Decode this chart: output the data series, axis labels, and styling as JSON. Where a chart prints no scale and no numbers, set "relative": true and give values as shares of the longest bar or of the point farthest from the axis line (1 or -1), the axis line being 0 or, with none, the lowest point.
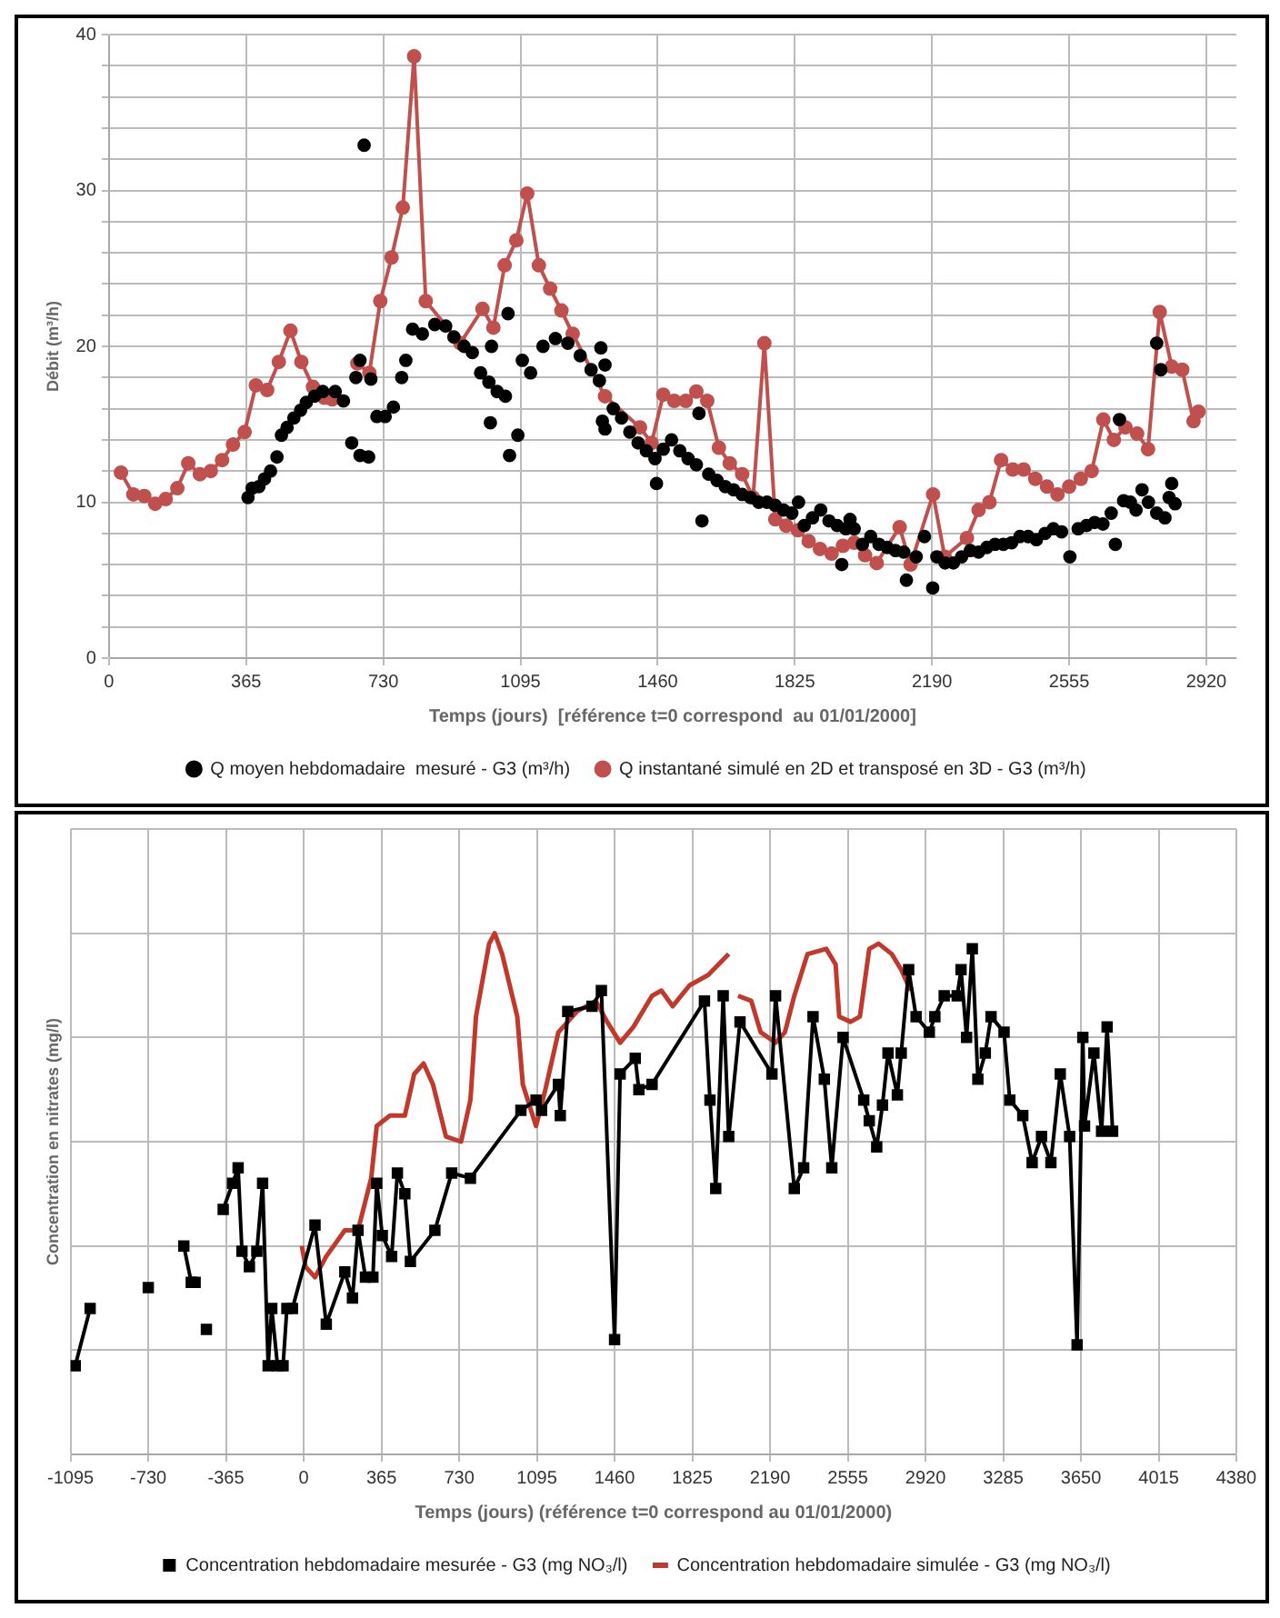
{
  "chart_data": [
    {
      "type": "line",
      "xlabel": "Temps (jours)  [référence t=0 correspond  au 01/01/2000]",
      "ylabel": "Débit (m³/h)",
      "xlim": [
        0,
        3000
      ],
      "xticks": [
        0,
        365,
        730,
        1095,
        1460,
        1825,
        2190,
        2555,
        2920
      ],
      "ylim": [
        0,
        40
      ],
      "yticks": [
        0,
        {
          "value": 2,
          "label": null
        },
        {
          "value": 4,
          "label": null
        },
        {
          "value": 6,
          "label": null
        },
        {
          "value": 8,
          "label": null
        },
        10,
        {
          "value": 12,
          "label": null
        },
        {
          "value": 14,
          "label": null
        },
        {
          "value": 16,
          "label": null
        },
        {
          "value": 18,
          "label": null
        },
        20,
        {
          "value": 22,
          "label": null
        },
        {
          "value": 24,
          "label": null
        },
        {
          "value": 26,
          "label": null
        },
        {
          "value": 28,
          "label": null
        },
        30,
        {
          "value": 32,
          "label": null
        },
        {
          "value": 34,
          "label": null
        },
        {
          "value": 36,
          "label": null
        },
        {
          "value": 38,
          "label": null
        },
        40
      ],
      "grid": true,
      "legend": "bottom",
      "series": [
        {
          "name": "Q moyen hebdomadaire  mesuré - G3 (m³/h)",
          "type": "scatter",
          "marker": "circle",
          "color": "#000000",
          "x": [
            370,
            381,
            399,
            414,
            430,
            447,
            459,
            474,
            492,
            510,
            525,
            547,
            569,
            602,
            624,
            646,
            668,
            691,
            679,
            668,
            657,
            697,
            713,
            735,
            757,
            779,
            790,
            808,
            834,
            867,
            896,
            918,
            945,
            967,
            989,
            1011,
            1033,
            1055,
            1015,
            1066,
            1088,
            1018,
            1062,
            1100,
            1122,
            1155,
            1188,
            1221,
            1254,
            1283,
            1309,
            1320,
            1305,
            1313,
            1320,
            1342,
            1364,
            1386,
            1408,
            1430,
            1453,
            1457,
            1475,
            1497,
            1519,
            1541,
            1563,
            1570,
            1578,
            1596,
            1618,
            1640,
            1662,
            1685,
            1707,
            1729,
            1751,
            1773,
            1795,
            1817,
            1835,
            1850,
            1872,
            1894,
            1916,
            1938,
            1961,
            1972,
            1983,
            1950,
            2005,
            2027,
            2049,
            2071,
            2093,
            2115,
            2122,
            2148,
            2170,
            2192,
            2203,
            2225,
            2247,
            2269,
            2292,
            2314,
            2336,
            2358,
            2380,
            2402,
            2424,
            2446,
            2468,
            2491,
            2513,
            2535,
            2557,
            2579,
            2601,
            2623,
            2645,
            2667,
            2678,
            2689,
            2700,
            2718,
            2733,
            2749,
            2766,
            2788,
            2810,
            2821,
            2828,
            2837,
            2788,
            2799
          ],
          "values": [
            10.3,
            10.9,
            11.0,
            11.5,
            12.0,
            12.9,
            14.3,
            14.8,
            15.4,
            15.9,
            16.4,
            16.8,
            17.1,
            17.1,
            16.5,
            13.8,
            13.0,
            12.9,
            32.9,
            19.1,
            18.0,
            17.9,
            15.5,
            15.5,
            16.1,
            18.0,
            19.1,
            21.1,
            20.8,
            21.4,
            21.3,
            20.6,
            20.0,
            19.6,
            18.3,
            17.7,
            17.1,
            16.8,
            15.1,
            13.0,
            14.3,
            20.0,
            22.1,
            19.1,
            18.3,
            20.0,
            20.5,
            20.2,
            19.4,
            18.5,
            19.9,
            18.8,
            17.8,
            15.2,
            14.7,
            16.0,
            15.4,
            14.5,
            13.8,
            13.3,
            12.8,
            11.2,
            13.4,
            14.0,
            13.3,
            12.8,
            12.4,
            15.7,
            8.8,
            11.8,
            11.4,
            11.0,
            10.8,
            10.5,
            10.3,
            10.0,
            10.0,
            9.8,
            9.5,
            9.3,
            10.0,
            8.5,
            9.0,
            9.5,
            8.8,
            8.5,
            8.3,
            8.9,
            8.3,
            6.0,
            7.3,
            7.8,
            7.3,
            7.1,
            6.9,
            6.8,
            5.0,
            6.5,
            7.8,
            4.5,
            6.5,
            6.1,
            6.1,
            6.5,
            6.9,
            6.8,
            7.1,
            7.3,
            7.3,
            7.4,
            7.8,
            7.8,
            7.6,
            8.0,
            8.3,
            8.1,
            6.5,
            8.3,
            8.5,
            8.7,
            8.6,
            9.3,
            7.3,
            15.3,
            10.1,
            10.0,
            9.5,
            10.8,
            10.0,
            9.3,
            9.0,
            10.3,
            11.2,
            9.9,
            20.2,
            18.5
          ]
        },
        {
          "name": "Q instantané simulé en 2D et transposé en 3D - G3 (m³/h)",
          "type": "line",
          "marker": "circle",
          "color": "#c0504d",
          "x": [
            32,
            65,
            94,
            123,
            151,
            182,
            211,
            242,
            271,
            301,
            330,
            361,
            391,
            421,
            452,
            483,
            512,
            543,
            573,
            594,
            625,
            661,
            693,
            722,
            752,
            782,
            812,
            843,
            935,
            994,
            1023,
            1053,
            1084,
            1113,
            1144,
            1174,
            1204,
            1234,
            1320,
            1413,
            1444,
            1475,
            1504,
            1535,
            1563,
            1592,
            1623,
            1652,
            1685,
            1714,
            1744,
            1773,
            1802,
            1833,
            1862,
            1892,
            1923,
            1953,
            1983,
            2012,
            2043,
            2104,
            2133,
            2193,
            2224,
            2283,
            2314,
            2343,
            2374,
            2405,
            2434,
            2465,
            2496,
            2524,
            2555,
            2586,
            2615,
            2646,
            2674,
            2705,
            2736,
            2765,
            2796,
            2828,
            2856,
            2886,
            2899
          ],
          "values": [
            11.9,
            10.5,
            10.4,
            9.9,
            10.2,
            10.9,
            12.5,
            11.8,
            12.0,
            12.7,
            13.7,
            14.5,
            17.5,
            17.2,
            19.0,
            21.0,
            19.0,
            17.4,
            16.7,
            16.6,
            null,
            18.9,
            18.3,
            22.9,
            25.7,
            28.9,
            38.6,
            22.9,
            20.2,
            22.4,
            21.2,
            25.2,
            26.8,
            29.8,
            25.2,
            23.7,
            22.3,
            20.8,
            16.8,
            14.8,
            13.8,
            16.9,
            16.5,
            16.5,
            17.1,
            16.5,
            13.5,
            12.5,
            11.8,
            10.3,
            20.2,
            8.9,
            8.5,
            8.2,
            7.5,
            7.0,
            6.7,
            7.2,
            7.4,
            6.6,
            6.1,
            8.4,
            6.0,
            10.5,
            6.5,
            7.7,
            9.5,
            10.0,
            12.7,
            12.1,
            12.1,
            11.5,
            11.0,
            10.5,
            11.0,
            11.5,
            12.0,
            15.3,
            14.0,
            14.8,
            14.4,
            13.4,
            22.2,
            18.7,
            18.5,
            15.2,
            15.8
          ]
        }
      ]
    },
    {
      "type": "line",
      "relative": true,
      "tick_labels": "x",
      "xlabel": "Temps (jours) (référence t=0 correspond au 01/01/2000)",
      "ylabel": "Concentration en nitrates (mg/l)",
      "xlim": [
        -1095,
        4380
      ],
      "xticks": [
        -1095,
        -730,
        -365,
        0,
        365,
        730,
        1095,
        1460,
        1825,
        2190,
        2555,
        2920,
        3285,
        3650,
        4015,
        4380
      ],
      "grid": true,
      "legend": "bottom",
      "series": [
        {
          "name": "Concentration hebdomadaire mesurée - G3 (mg NO₃/l)",
          "type": "line",
          "marker": "square",
          "color": "#000000",
          "x": [
            -1073,
            -1003,
            -1000,
            -730,
            -700,
            -563,
            -528,
            -510,
            -490,
            -457,
            -420,
            -378,
            -334,
            -308,
            -290,
            -255,
            -220,
            -193,
            -167,
            -150,
            -123,
            -97,
            -79,
            -53,
            53,
            106,
            193,
            229,
            255,
            290,
            325,
            343,
            369,
            413,
            440,
            475,
            501,
            616,
            695,
            783,
            1020,
            1091,
            1117,
            1196,
            1205,
            1240,
            1354,
            1398,
            1460,
            1486,
            1557,
            1574,
            1636,
            1882,
            1908,
            1935,
            1970,
            1996,
            2049,
            2199,
            2216,
            2304,
            2348,
            2392,
            2445,
            2480,
            2533,
            2630,
            2656,
            2691,
            2718,
            2744,
            2788,
            2806,
            2841,
            2876,
            2938,
            2964,
            3008,
            3069,
            3087,
            3113,
            3140,
            3166,
            3201,
            3228,
            3289,
            3316,
            3377,
            3421,
            3465,
            3509,
            3553,
            3597,
            3632,
            3659,
            3667,
            3711,
            3747,
            3773,
            3799
          ],
          "values": [
            0.17,
            0.28,
            null,
            0.32,
            null,
            0.4,
            0.33,
            0.33,
            null,
            0.24,
            null,
            0.47,
            0.52,
            0.55,
            0.39,
            0.36,
            0.39,
            0.52,
            0.17,
            0.28,
            0.17,
            0.17,
            0.28,
            0.28,
            0.44,
            0.25,
            0.35,
            0.3,
            0.43,
            0.34,
            0.34,
            0.52,
            0.42,
            0.38,
            0.54,
            0.5,
            0.37,
            0.43,
            0.54,
            0.53,
            0.66,
            0.68,
            0.66,
            0.71,
            0.65,
            0.85,
            0.86,
            0.89,
            0.22,
            0.73,
            0.76,
            0.7,
            0.71,
            0.87,
            0.68,
            0.51,
            0.88,
            0.61,
            0.83,
            0.73,
            0.88,
            0.51,
            0.55,
            0.84,
            0.72,
            0.55,
            0.8,
            0.68,
            0.64,
            0.59,
            0.67,
            0.77,
            0.69,
            0.77,
            0.93,
            0.84,
            0.81,
            0.84,
            0.88,
            0.88,
            0.93,
            0.8,
            0.97,
            0.72,
            0.77,
            0.84,
            0.81,
            0.68,
            0.65,
            0.56,
            0.61,
            0.56,
            0.73,
            0.61,
            0.21,
            0.8,
            0.63,
            0.77,
            0.62,
            0.82,
            0.62
          ]
        },
        {
          "name": "Concentration hebdomadaire simulée - G3 (mg NO₃/l)",
          "type": "line",
          "marker": "none",
          "color": "#c0392b",
          "x": [
            -9,
            9,
            53,
            106,
            193,
            255,
            317,
            343,
            405,
            475,
            519,
            563,
            607,
            668,
            739,
            783,
            809,
            871,
            897,
            932,
            1003,
            1029,
            1091,
            1135,
            1196,
            1284,
            1372,
            1425,
            1486,
            1548,
            1636,
            1680,
            1733,
            1812,
            1900,
            1996,
            2020,
            2040,
            2102,
            2146,
            2216,
            2260,
            2304,
            2366,
            2454,
            2498,
            2515,
            2568,
            2612,
            2656,
            2700,
            2762,
            2806,
            2850
          ],
          "values": [
            0.4,
            0.36,
            0.34,
            0.38,
            0.43,
            0.43,
            0.53,
            0.63,
            0.65,
            0.65,
            0.73,
            0.75,
            0.71,
            0.61,
            0.6,
            0.68,
            0.84,
            0.98,
            1.0,
            0.96,
            0.84,
            0.71,
            0.63,
            0.7,
            0.81,
            0.85,
            0.87,
            0.83,
            0.79,
            0.82,
            0.88,
            0.89,
            0.86,
            0.9,
            0.92,
            0.96,
            null,
            0.88,
            0.87,
            0.81,
            0.79,
            0.81,
            0.88,
            0.96,
            0.97,
            0.94,
            0.84,
            0.83,
            0.84,
            0.97,
            0.98,
            0.96,
            0.93,
            0.89
          ]
        }
      ]
    }
  ]
}
